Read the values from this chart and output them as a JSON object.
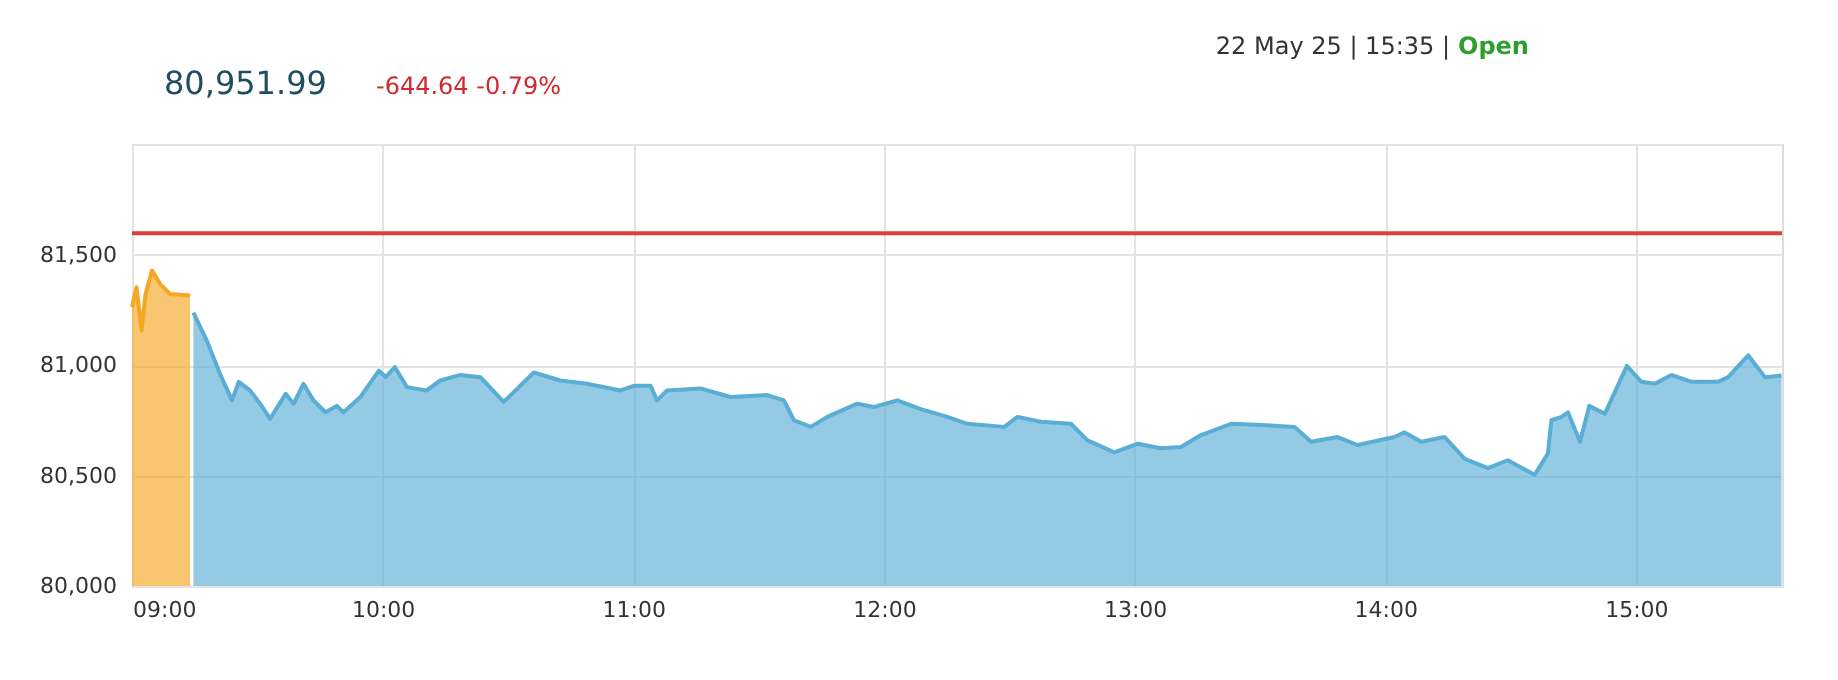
{
  "chart_data": {
    "type": "area",
    "title": "80,951.99",
    "subtitle": "-644.64 -0.79%",
    "annotations": [
      "22 May 25 | 15:35 |",
      "Open"
    ],
    "series": [
      {
        "color": "#f5a623",
        "x": [
          9.0,
          9.018,
          9.038,
          9.054,
          9.08,
          9.112,
          9.152,
          9.232
        ],
        "values": [
          81262,
          81352,
          81156,
          81321,
          81427,
          81367,
          81321,
          81315
        ]
      },
      {
        "color": "#5aaed6",
        "x": [
          9.245,
          9.298,
          9.351,
          9.399,
          9.426,
          9.471,
          9.511,
          9.551,
          9.613,
          9.645,
          9.684,
          9.724,
          9.772,
          9.817,
          9.844,
          9.911,
          9.985,
          10.012,
          10.049,
          10.097,
          10.176,
          10.23,
          10.31,
          10.39,
          10.483,
          10.603,
          10.709,
          10.815,
          10.949,
          11.002,
          11.069,
          11.095,
          11.135,
          11.268,
          11.388,
          11.534,
          11.601,
          11.641,
          11.708,
          11.774,
          11.894,
          11.961,
          12.053,
          12.147,
          12.253,
          12.333,
          12.48,
          12.533,
          12.626,
          12.746,
          12.812,
          12.919,
          13.012,
          13.105,
          13.185,
          13.265,
          13.385,
          13.505,
          13.638,
          13.704,
          13.81,
          13.89,
          14.037,
          14.077,
          14.144,
          14.237,
          14.317,
          14.41,
          14.489,
          14.596,
          14.649,
          14.663,
          14.703,
          14.729,
          14.777,
          14.814,
          14.876,
          14.964,
          15.022,
          15.076,
          15.142,
          15.222,
          15.328,
          15.368,
          15.448,
          15.515,
          15.581
        ],
        "values": [
          81237,
          81111,
          80960,
          80840,
          80924,
          80885,
          80825,
          80756,
          80870,
          80825,
          80915,
          80840,
          80786,
          80815,
          80786,
          80855,
          80975,
          80945,
          80990,
          80900,
          80885,
          80930,
          80955,
          80945,
          80833,
          80966,
          80930,
          80915,
          80885,
          80906,
          80906,
          80840,
          80885,
          80894,
          80855,
          80864,
          80840,
          80750,
          80720,
          80765,
          80825,
          80810,
          80840,
          80800,
          80765,
          80734,
          80720,
          80765,
          80743,
          80734,
          80659,
          80605,
          80644,
          80623,
          80629,
          80683,
          80734,
          80729,
          80720,
          80653,
          80674,
          80638,
          80674,
          80695,
          80653,
          80674,
          80575,
          80533,
          80569,
          80503,
          80599,
          80750,
          80765,
          80786,
          80653,
          80815,
          80779,
          80996,
          80924,
          80915,
          80955,
          80924,
          80924,
          80945,
          81044,
          80945,
          80952
        ]
      }
    ],
    "xlim": [
      9,
      15.583
    ],
    "xticks": [
      {
        "value": 9,
        "label": "09:00"
      },
      {
        "value": 10,
        "label": "10:00"
      },
      {
        "value": 11,
        "label": "11:00"
      },
      {
        "value": 12,
        "label": "12:00"
      },
      {
        "value": 13,
        "label": "13:00"
      },
      {
        "value": 14,
        "label": "14:00"
      },
      {
        "value": 15,
        "label": "15:00"
      }
    ],
    "ylim": [
      80000,
      82000
    ],
    "yticks": [
      {
        "value": 80000,
        "label": "80,000"
      },
      {
        "value": 80500,
        "label": "80,500"
      },
      {
        "value": 81000,
        "label": "81,000"
      },
      {
        "value": 81500,
        "label": "81,500"
      },
      {
        "value": 82000,
        "label": null
      }
    ],
    "ref_lines": [
      {
        "axis": "y",
        "value": 81596.63,
        "color": "#d9413a"
      }
    ],
    "grid": true
  }
}
